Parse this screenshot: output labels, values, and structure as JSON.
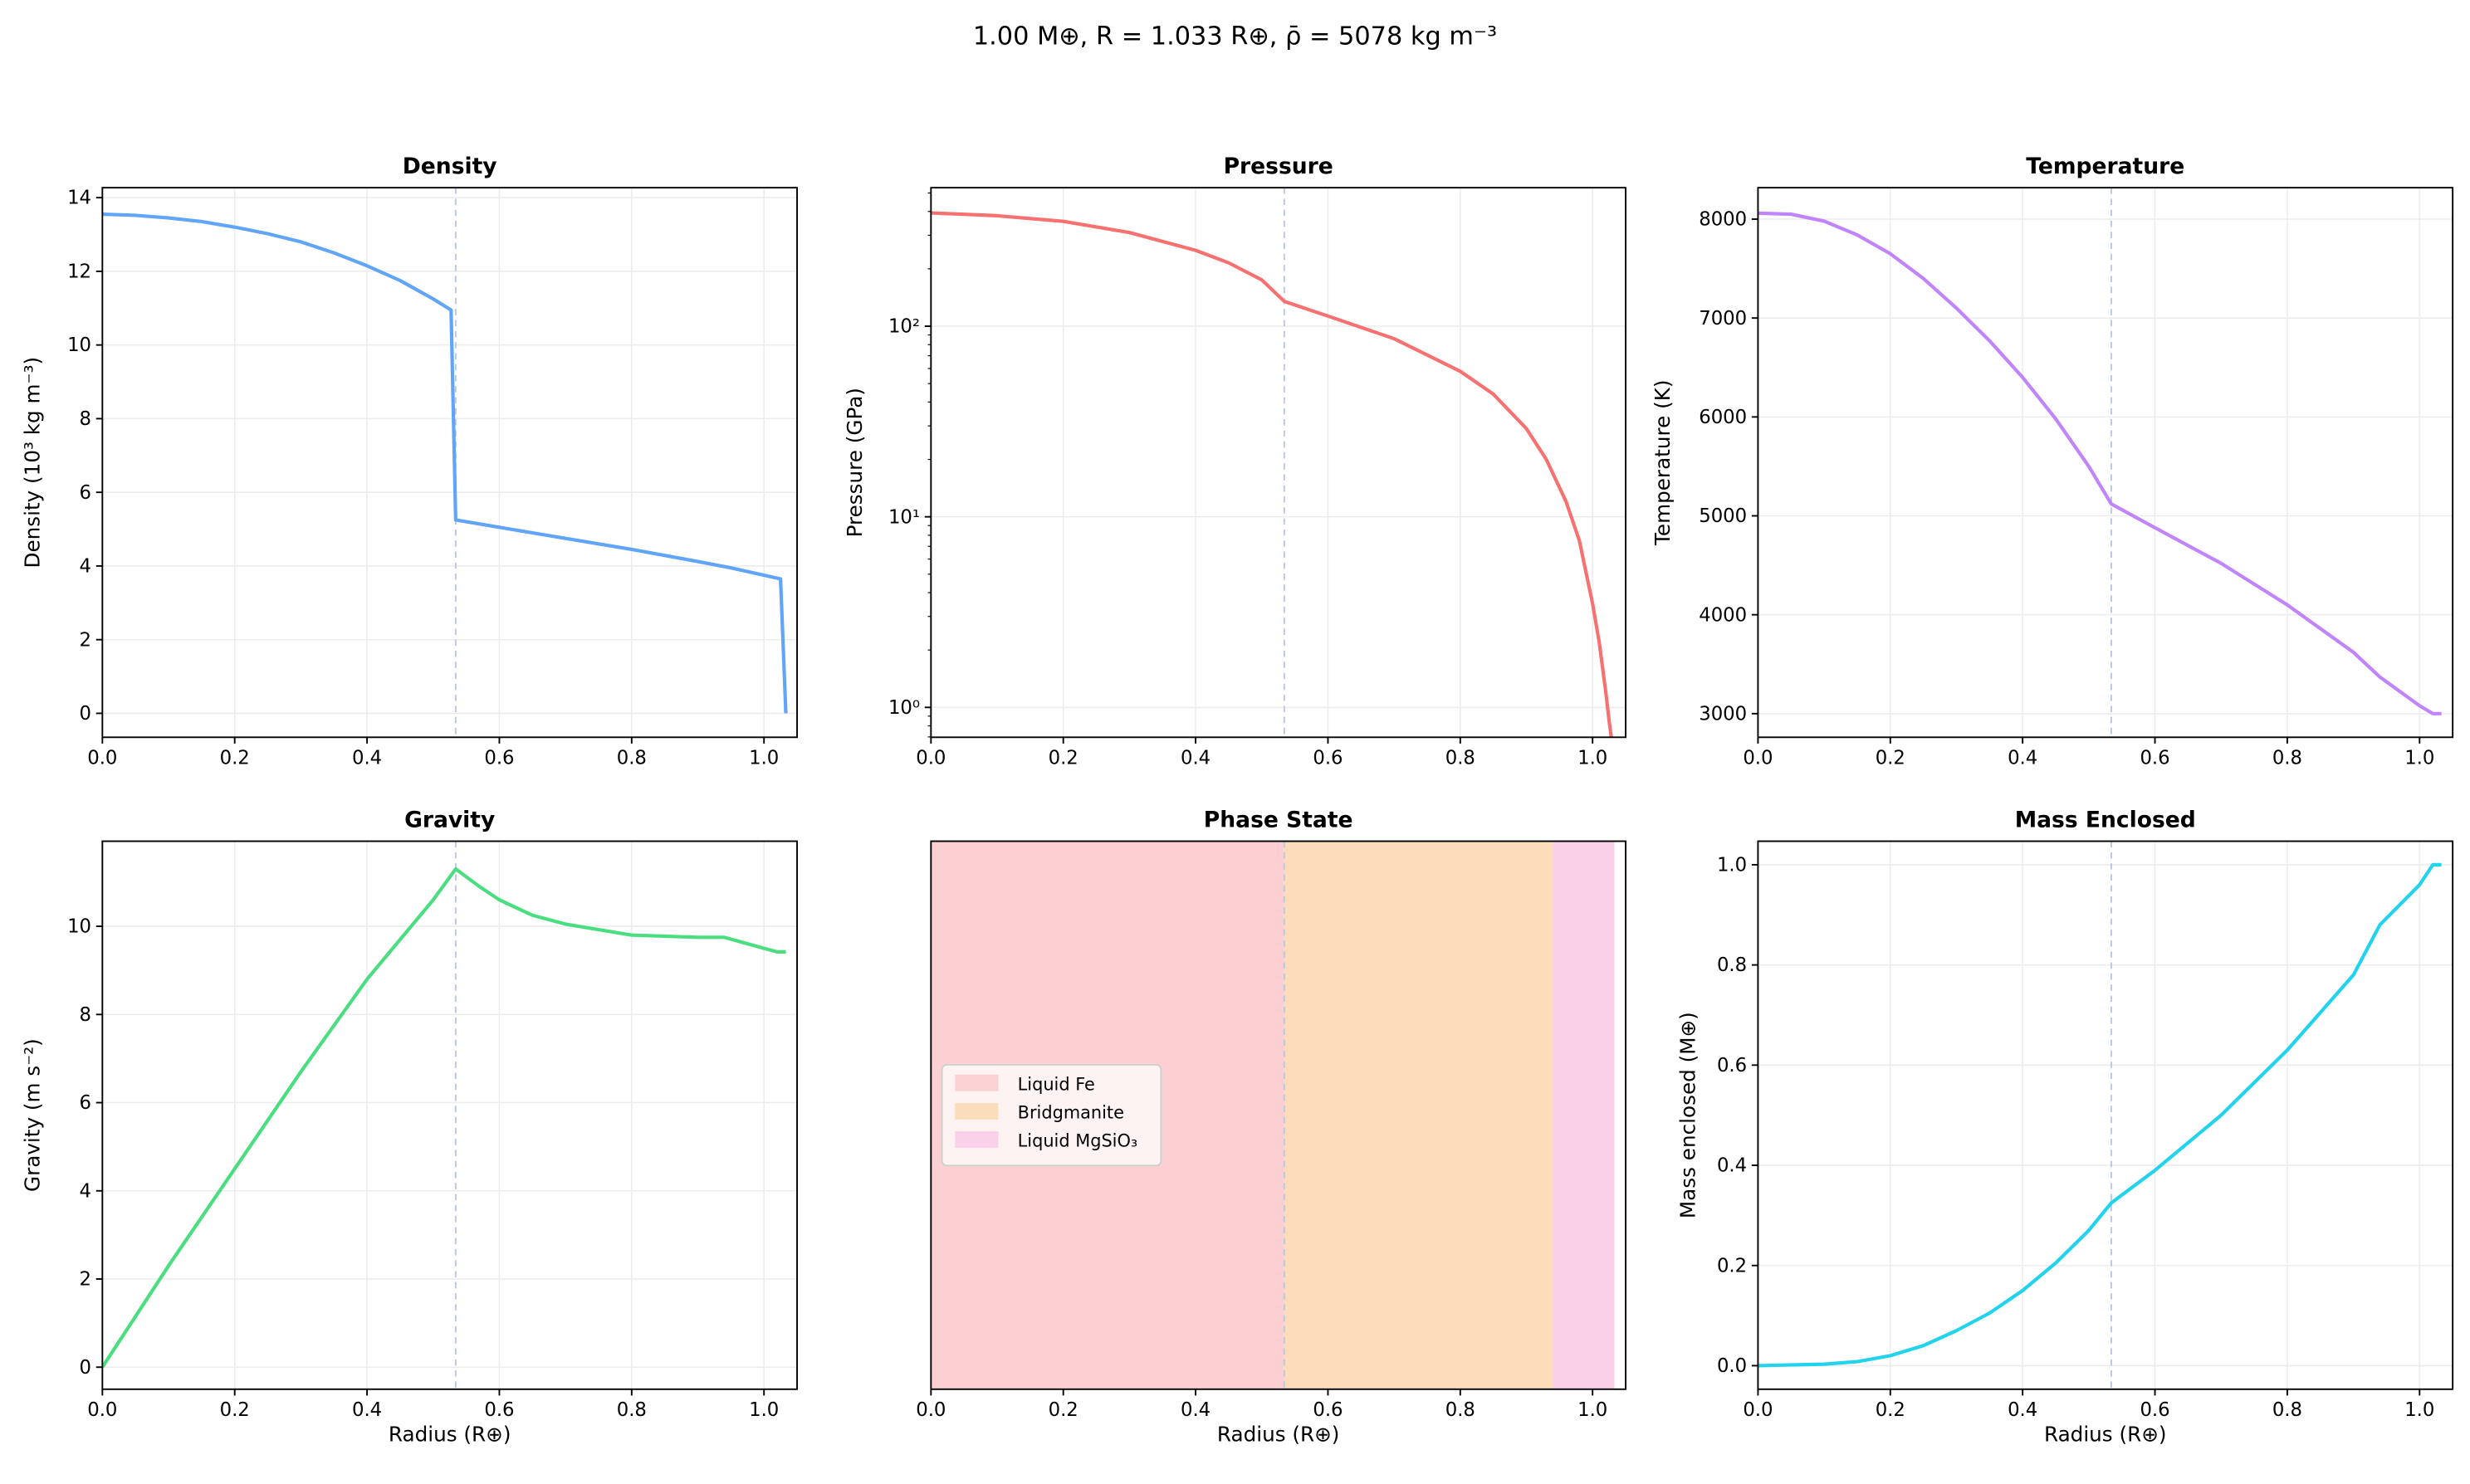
{
  "suptitle": "1.00 M⊕,  R = 1.033 R⊕,  ρ̄ = 5078 kg m⁻³",
  "boundary_radius": 0.534,
  "boundary_color": "#b8c8e0",
  "chart_data": [
    {
      "type": "line",
      "title": "Density",
      "xlabel": "",
      "ylabel": "Density (10³ kg m⁻³)",
      "color": "#60a5fa",
      "xlim": [
        0,
        1.05
      ],
      "ylim": [
        -0.65,
        14.27
      ],
      "yscale": "linear",
      "grid": true,
      "xticks": [
        0,
        0.2,
        0.4,
        0.6,
        0.8,
        1.0
      ],
      "xtick_labels": [
        "0.0",
        "0.2",
        "0.4",
        "0.6",
        "0.8",
        "1.0"
      ],
      "yticks": [
        0,
        2,
        4,
        6,
        8,
        10,
        12,
        14
      ],
      "ytick_labels": [
        "0",
        "2",
        "4",
        "6",
        "8",
        "10",
        "12",
        "14"
      ],
      "x": [
        0,
        0.05,
        0.1,
        0.15,
        0.2,
        0.25,
        0.3,
        0.35,
        0.4,
        0.45,
        0.5,
        0.527,
        0.534,
        0.6,
        0.7,
        0.8,
        0.9,
        0.95,
        1.0,
        1.025,
        1.033
      ],
      "y": [
        13.55,
        13.52,
        13.45,
        13.35,
        13.2,
        13.02,
        12.8,
        12.5,
        12.15,
        11.75,
        11.25,
        10.95,
        5.25,
        5.05,
        4.75,
        4.45,
        4.12,
        3.95,
        3.75,
        3.65,
        0.0
      ]
    },
    {
      "type": "line",
      "title": "Pressure",
      "xlabel": "",
      "ylabel": "Pressure (GPa)",
      "color": "#f87171",
      "xlim": [
        0,
        1.05
      ],
      "ylim": [
        0.697,
        533
      ],
      "yscale": "log",
      "grid": true,
      "xticks": [
        0,
        0.2,
        0.4,
        0.6,
        0.8,
        1.0
      ],
      "xtick_labels": [
        "0.0",
        "0.2",
        "0.4",
        "0.6",
        "0.8",
        "1.0"
      ],
      "yticks": [
        1,
        10,
        100
      ],
      "ytick_labels": [
        "10⁰",
        "10¹",
        "10²"
      ],
      "x": [
        0,
        0.1,
        0.2,
        0.3,
        0.4,
        0.45,
        0.5,
        0.534,
        0.6,
        0.7,
        0.8,
        0.85,
        0.9,
        0.93,
        0.96,
        0.98,
        1.0,
        1.01,
        1.02,
        1.025,
        1.03
      ],
      "y": [
        393,
        380,
        355,
        310,
        250,
        215,
        175,
        135,
        113,
        86,
        58,
        44,
        29,
        20,
        12,
        7.5,
        3.5,
        2.2,
        1.2,
        0.85,
        0.6
      ]
    },
    {
      "type": "line",
      "title": "Temperature",
      "xlabel": "",
      "ylabel": "Temperature (K)",
      "color": "#c084fc",
      "xlim": [
        0,
        1.05
      ],
      "ylim": [
        2761,
        8318
      ],
      "yscale": "linear",
      "grid": true,
      "xticks": [
        0,
        0.2,
        0.4,
        0.6,
        0.8,
        1.0
      ],
      "xtick_labels": [
        "0.0",
        "0.2",
        "0.4",
        "0.6",
        "0.8",
        "1.0"
      ],
      "yticks": [
        3000,
        4000,
        5000,
        6000,
        7000,
        8000
      ],
      "ytick_labels": [
        "3000",
        "4000",
        "5000",
        "6000",
        "7000",
        "8000"
      ],
      "x": [
        0,
        0.05,
        0.1,
        0.15,
        0.2,
        0.25,
        0.3,
        0.35,
        0.4,
        0.45,
        0.5,
        0.534,
        0.6,
        0.7,
        0.8,
        0.9,
        0.94,
        1.0,
        1.02,
        1.033
      ],
      "y": [
        8060,
        8050,
        7980,
        7840,
        7650,
        7400,
        7100,
        6770,
        6400,
        5980,
        5500,
        5120,
        4880,
        4520,
        4100,
        3620,
        3370,
        3080,
        3000,
        3000
      ]
    },
    {
      "type": "line",
      "title": "Gravity",
      "xlabel": "Radius (R⊕)",
      "ylabel": "Gravity (m s⁻²)",
      "color": "#4ade80",
      "xlim": [
        0,
        1.05
      ],
      "ylim": [
        -0.5,
        11.93
      ],
      "yscale": "linear",
      "grid": true,
      "xticks": [
        0,
        0.2,
        0.4,
        0.6,
        0.8,
        1.0
      ],
      "xtick_labels": [
        "0.0",
        "0.2",
        "0.4",
        "0.6",
        "0.8",
        "1.0"
      ],
      "yticks": [
        0,
        2,
        4,
        6,
        8,
        10
      ],
      "ytick_labels": [
        "0",
        "2",
        "4",
        "6",
        "8",
        "10"
      ],
      "x": [
        0,
        0.1,
        0.2,
        0.3,
        0.4,
        0.5,
        0.534,
        0.57,
        0.6,
        0.65,
        0.7,
        0.8,
        0.9,
        0.94,
        1.0,
        1.02,
        1.033
      ],
      "y": [
        0,
        2.3,
        4.5,
        6.7,
        8.8,
        10.6,
        11.3,
        10.9,
        10.6,
        10.25,
        10.05,
        9.8,
        9.75,
        9.75,
        9.5,
        9.42,
        9.42
      ]
    },
    {
      "type": "area",
      "title": "Phase State",
      "xlabel": "Radius (R⊕)",
      "ylabel": "",
      "xlim": [
        0,
        1.05
      ],
      "grid": false,
      "xticks": [
        0,
        0.2,
        0.4,
        0.6,
        0.8,
        1.0
      ],
      "xtick_labels": [
        "0.0",
        "0.2",
        "0.4",
        "0.6",
        "0.8",
        "1.0"
      ],
      "legend_position": "center-left",
      "regions": [
        {
          "name": "Liquid Fe",
          "from": 0,
          "to": 0.534,
          "color": "#fcd0d3"
        },
        {
          "name": "Bridgmanite",
          "from": 0.534,
          "to": 0.94,
          "color": "#fcdcb9"
        },
        {
          "name": "Liquid MgSiO₃",
          "from": 0.94,
          "to": 1.033,
          "color": "#f9d0e8"
        }
      ]
    },
    {
      "type": "line",
      "title": "Mass Enclosed",
      "xlabel": "Radius (R⊕)",
      "ylabel": "Mass enclosed (M⊕)",
      "color": "#22d3ee",
      "xlim": [
        0,
        1.05
      ],
      "ylim": [
        -0.047,
        1.047
      ],
      "yscale": "linear",
      "grid": true,
      "xticks": [
        0,
        0.2,
        0.4,
        0.6,
        0.8,
        1.0
      ],
      "xtick_labels": [
        "0.0",
        "0.2",
        "0.4",
        "0.6",
        "0.8",
        "1.0"
      ],
      "yticks": [
        0,
        0.2,
        0.4,
        0.6,
        0.8,
        1.0
      ],
      "ytick_labels": [
        "0.0",
        "0.2",
        "0.4",
        "0.6",
        "0.8",
        "1.0"
      ],
      "x": [
        0,
        0.1,
        0.15,
        0.2,
        0.25,
        0.3,
        0.35,
        0.4,
        0.45,
        0.5,
        0.534,
        0.6,
        0.7,
        0.8,
        0.9,
        0.94,
        1.0,
        1.02,
        1.033
      ],
      "y": [
        0,
        0.003,
        0.008,
        0.02,
        0.04,
        0.07,
        0.105,
        0.15,
        0.205,
        0.27,
        0.325,
        0.39,
        0.5,
        0.63,
        0.78,
        0.88,
        0.96,
        1.0,
        1.0
      ]
    }
  ]
}
